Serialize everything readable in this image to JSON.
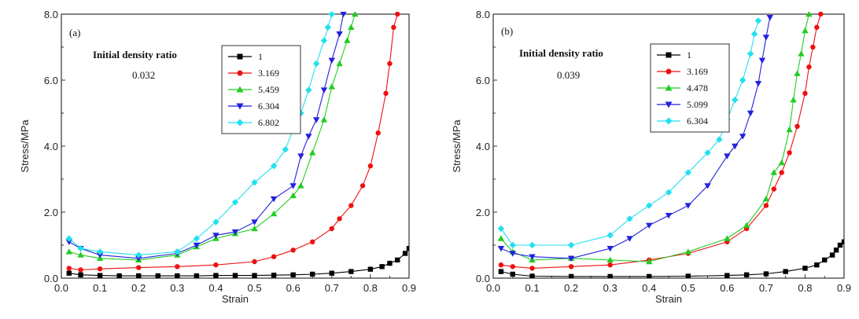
{
  "chart_data": [
    {
      "type": "line",
      "panel_label": "(a)",
      "xlabel": "Strain",
      "ylabel": "Stress/MPa",
      "xlim": [
        0.0,
        0.9
      ],
      "ylim": [
        0.0,
        8.0
      ],
      "x_ticks": [
        "0.0",
        "0.1",
        "0.2",
        "0.3",
        "0.4",
        "0.5",
        "0.6",
        "0.7",
        "0.8",
        "0.9"
      ],
      "y_ticks": [
        "0.0",
        "2.0",
        "4.0",
        "6.0",
        "8.0"
      ],
      "annotation_title": "Initial density ratio",
      "annotation_value": "0.032",
      "legend_position": "top-right",
      "series": [
        {
          "name": "1",
          "color": "#000000",
          "marker": "square",
          "x": [
            0.02,
            0.05,
            0.1,
            0.15,
            0.2,
            0.25,
            0.3,
            0.35,
            0.4,
            0.45,
            0.5,
            0.55,
            0.6,
            0.65,
            0.7,
            0.75,
            0.8,
            0.83,
            0.85,
            0.87,
            0.89,
            0.9
          ],
          "y": [
            0.15,
            0.1,
            0.08,
            0.07,
            0.07,
            0.07,
            0.07,
            0.07,
            0.08,
            0.08,
            0.08,
            0.09,
            0.1,
            0.12,
            0.15,
            0.2,
            0.27,
            0.35,
            0.45,
            0.55,
            0.75,
            0.9
          ]
        },
        {
          "name": "3.169",
          "color": "#ee1111",
          "marker": "circle",
          "x": [
            0.02,
            0.05,
            0.1,
            0.2,
            0.3,
            0.4,
            0.5,
            0.55,
            0.6,
            0.65,
            0.7,
            0.72,
            0.75,
            0.78,
            0.8,
            0.82,
            0.84,
            0.85,
            0.86,
            0.87
          ],
          "y": [
            0.3,
            0.25,
            0.28,
            0.32,
            0.35,
            0.4,
            0.5,
            0.65,
            0.85,
            1.1,
            1.5,
            1.8,
            2.2,
            2.8,
            3.4,
            4.4,
            5.6,
            6.5,
            7.6,
            8.0
          ]
        },
        {
          "name": "5.459",
          "color": "#22cc22",
          "marker": "triangle",
          "x": [
            0.02,
            0.05,
            0.1,
            0.2,
            0.3,
            0.35,
            0.4,
            0.45,
            0.5,
            0.55,
            0.6,
            0.62,
            0.65,
            0.68,
            0.7,
            0.72,
            0.74,
            0.75,
            0.76
          ],
          "y": [
            0.8,
            0.7,
            0.6,
            0.55,
            0.7,
            0.95,
            1.2,
            1.35,
            1.5,
            1.95,
            2.5,
            2.8,
            3.8,
            4.8,
            5.8,
            6.5,
            7.2,
            7.6,
            8.0
          ]
        },
        {
          "name": "6.304",
          "color": "#2222dd",
          "marker": "triangle-down",
          "x": [
            0.02,
            0.05,
            0.1,
            0.2,
            0.3,
            0.35,
            0.4,
            0.45,
            0.5,
            0.55,
            0.6,
            0.62,
            0.64,
            0.66,
            0.68,
            0.7,
            0.72,
            0.73
          ],
          "y": [
            1.1,
            0.9,
            0.7,
            0.6,
            0.75,
            1.0,
            1.3,
            1.4,
            1.7,
            2.4,
            2.8,
            3.7,
            4.3,
            4.8,
            5.7,
            6.6,
            7.4,
            8.0
          ]
        },
        {
          "name": "6.802",
          "color": "#22e0ee",
          "marker": "diamond",
          "x": [
            0.02,
            0.05,
            0.1,
            0.2,
            0.3,
            0.35,
            0.4,
            0.45,
            0.5,
            0.55,
            0.58,
            0.6,
            0.62,
            0.64,
            0.66,
            0.68,
            0.69,
            0.7
          ],
          "y": [
            1.2,
            0.9,
            0.8,
            0.7,
            0.8,
            1.2,
            1.7,
            2.3,
            2.9,
            3.4,
            3.9,
            4.5,
            5.0,
            5.7,
            6.5,
            7.2,
            7.6,
            8.0
          ]
        }
      ]
    },
    {
      "type": "line",
      "panel_label": "(b)",
      "xlabel": "Strain",
      "ylabel": "Stress/MPa",
      "xlim": [
        0.0,
        0.9
      ],
      "ylim": [
        0.0,
        8.0
      ],
      "x_ticks": [
        "0.0",
        "0.1",
        "0.2",
        "0.3",
        "0.4",
        "0.5",
        "0.6",
        "0.7",
        "0.8",
        "0.9"
      ],
      "y_ticks": [
        "0.0",
        "2.0",
        "4.0",
        "6.0",
        "8.0"
      ],
      "annotation_title": "Initial density ratio",
      "annotation_value": "0.039",
      "legend_position": "top-right",
      "series": [
        {
          "name": "1",
          "color": "#000000",
          "marker": "square",
          "x": [
            0.02,
            0.05,
            0.1,
            0.2,
            0.3,
            0.4,
            0.5,
            0.6,
            0.65,
            0.7,
            0.75,
            0.8,
            0.83,
            0.85,
            0.87,
            0.88,
            0.89,
            0.9
          ],
          "y": [
            0.2,
            0.12,
            0.06,
            0.05,
            0.05,
            0.05,
            0.06,
            0.08,
            0.1,
            0.13,
            0.2,
            0.3,
            0.4,
            0.55,
            0.7,
            0.85,
            1.0,
            1.1
          ]
        },
        {
          "name": "3.169",
          "color": "#ee1111",
          "marker": "circle",
          "x": [
            0.02,
            0.05,
            0.1,
            0.2,
            0.3,
            0.4,
            0.5,
            0.6,
            0.65,
            0.7,
            0.72,
            0.74,
            0.76,
            0.78,
            0.8,
            0.81,
            0.82,
            0.83,
            0.84
          ],
          "y": [
            0.4,
            0.35,
            0.3,
            0.35,
            0.4,
            0.55,
            0.75,
            1.1,
            1.5,
            2.2,
            2.7,
            3.2,
            3.8,
            4.6,
            5.6,
            6.4,
            7.0,
            7.6,
            8.0
          ]
        },
        {
          "name": "4.478",
          "color": "#22cc22",
          "marker": "triangle",
          "x": [
            0.02,
            0.05,
            0.1,
            0.2,
            0.3,
            0.4,
            0.5,
            0.6,
            0.65,
            0.7,
            0.72,
            0.74,
            0.76,
            0.77,
            0.78,
            0.79,
            0.8,
            0.81
          ],
          "y": [
            1.2,
            0.8,
            0.55,
            0.6,
            0.55,
            0.5,
            0.8,
            1.2,
            1.6,
            2.4,
            3.2,
            3.5,
            4.5,
            5.4,
            6.2,
            6.8,
            7.5,
            8.0
          ]
        },
        {
          "name": "5.099",
          "color": "#2222dd",
          "marker": "triangle-down",
          "x": [
            0.02,
            0.05,
            0.1,
            0.2,
            0.3,
            0.35,
            0.4,
            0.45,
            0.5,
            0.55,
            0.6,
            0.62,
            0.64,
            0.66,
            0.68,
            0.69,
            0.7,
            0.71
          ],
          "y": [
            0.9,
            0.75,
            0.65,
            0.6,
            0.9,
            1.2,
            1.6,
            1.9,
            2.2,
            2.8,
            3.7,
            4.0,
            4.3,
            5.0,
            5.9,
            6.6,
            7.3,
            7.9
          ]
        },
        {
          "name": "6.304",
          "color": "#22e0ee",
          "marker": "diamond",
          "x": [
            0.02,
            0.05,
            0.1,
            0.2,
            0.3,
            0.35,
            0.4,
            0.45,
            0.5,
            0.55,
            0.58,
            0.6,
            0.62,
            0.64,
            0.66,
            0.67,
            0.68
          ],
          "y": [
            1.5,
            1.0,
            1.0,
            1.0,
            1.3,
            1.8,
            2.2,
            2.6,
            3.2,
            3.8,
            4.2,
            4.8,
            5.4,
            6.0,
            6.8,
            7.4,
            7.8
          ]
        }
      ]
    }
  ]
}
